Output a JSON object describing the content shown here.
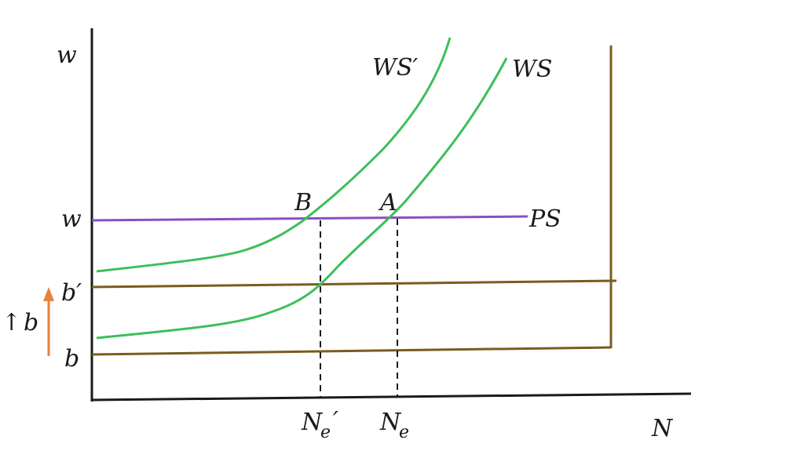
{
  "labels": {
    "y_axis": "w",
    "x_axis": "N",
    "w_level": "w",
    "b_prime": "b′",
    "b": "b",
    "increase_arrow_glyph": "↑",
    "increase_var": "b",
    "ws_prime": "WS′",
    "ws": "WS",
    "ps": "PS",
    "point_b": "B",
    "point_a": "A",
    "ne_prime_main": "N",
    "ne_prime_sub": "e",
    "ne_prime_mark": "′",
    "ne_main": "N",
    "ne_sub": "e"
  },
  "colors": {
    "axis": "#1a1a1a",
    "ws_curves": "#3cbf5a",
    "ps_line": "#8a4fc0",
    "b_lines": "#7a5c1e",
    "arrow": "#e8823a",
    "dashes": "#1a1a1a"
  }
}
